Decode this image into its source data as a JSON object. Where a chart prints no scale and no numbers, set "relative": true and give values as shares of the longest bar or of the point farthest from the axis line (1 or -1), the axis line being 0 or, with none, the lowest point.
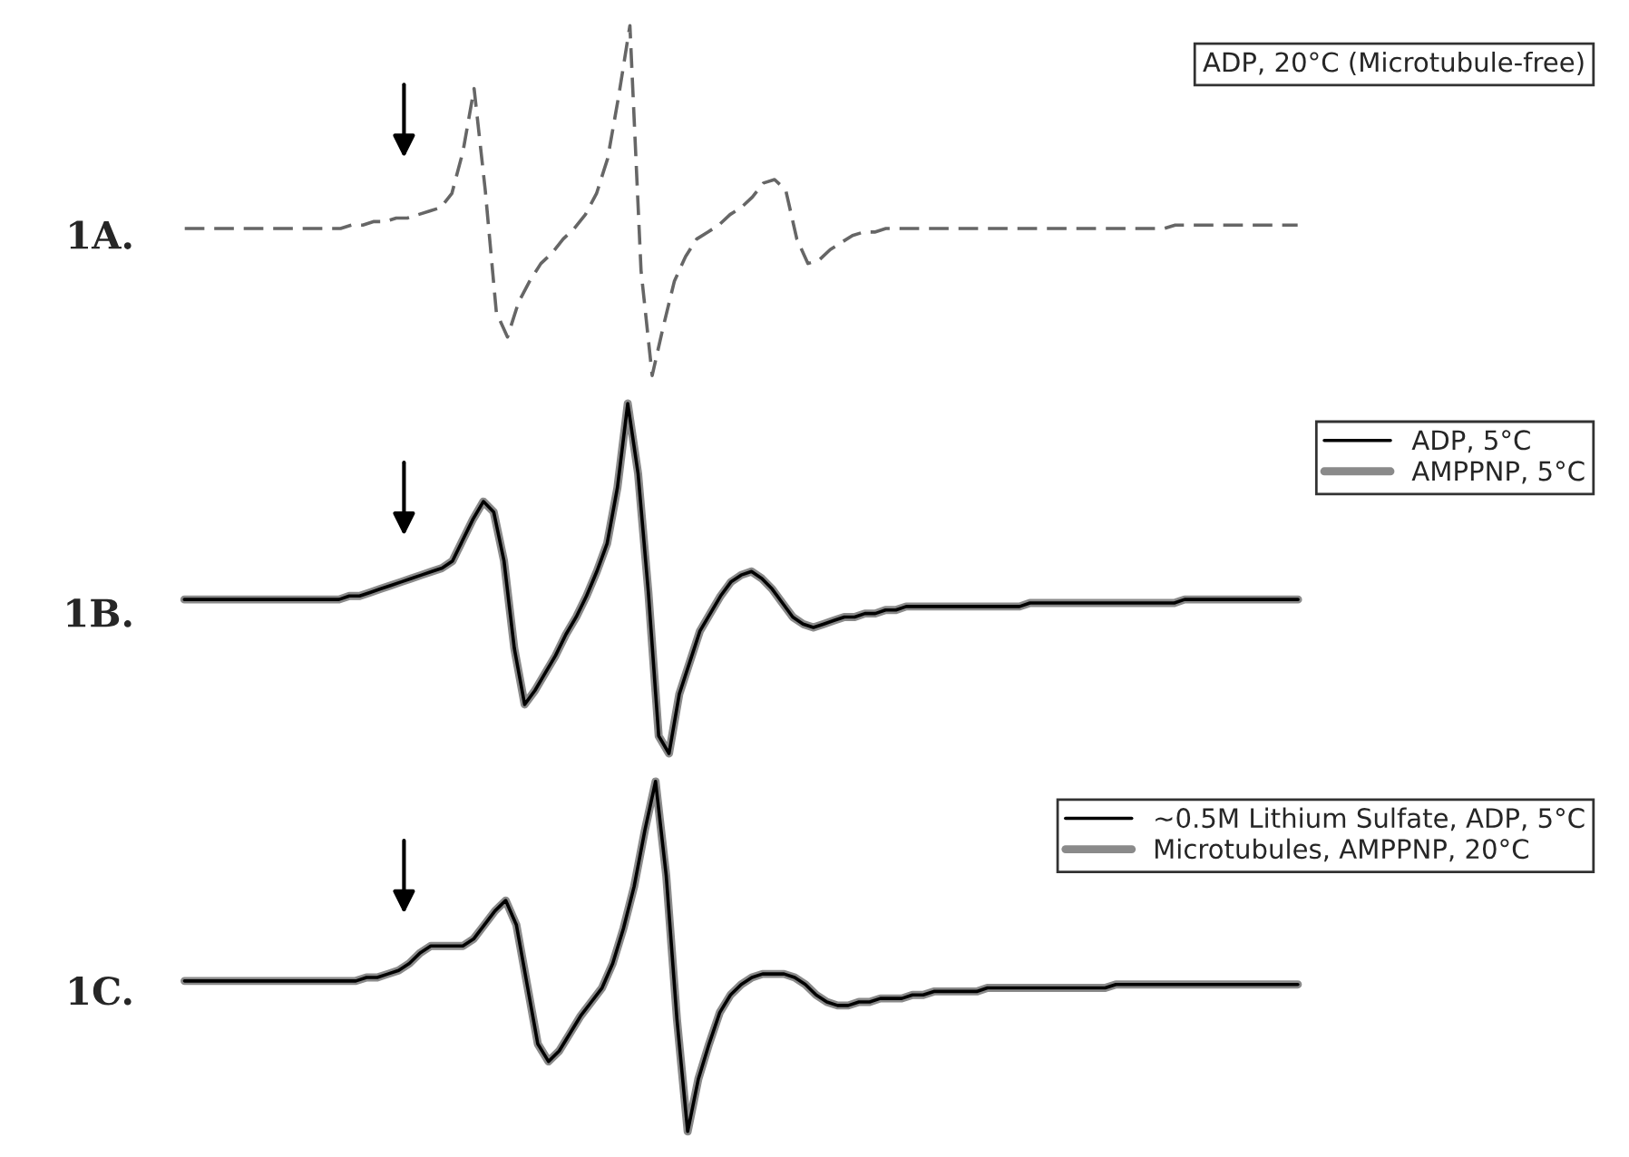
{
  "chart_data": [
    {
      "type": "line",
      "title": "1A.",
      "relative": true,
      "legend": "top right",
      "line_style": "dashed",
      "marker": "none",
      "categories": [
        null,
        null,
        null,
        null,
        null,
        null,
        null,
        null,
        null,
        null,
        null,
        null,
        null,
        null,
        null,
        null,
        null,
        null,
        null,
        null,
        null,
        null,
        null,
        null,
        null,
        null,
        null,
        null,
        null,
        null,
        null,
        null,
        null,
        null,
        null,
        null,
        null,
        null,
        null,
        null,
        null,
        null,
        null,
        null,
        null,
        null,
        null,
        null,
        null,
        null,
        null,
        null,
        null,
        null,
        null,
        null,
        null,
        null,
        null,
        null,
        null,
        null,
        null,
        null,
        null,
        null,
        null,
        null,
        null,
        null,
        null,
        null,
        null,
        null,
        null,
        null,
        null,
        null,
        null,
        null,
        null,
        null,
        null,
        null,
        null,
        null,
        null,
        null,
        null,
        null,
        null,
        null,
        null,
        null,
        null,
        null,
        null,
        null,
        null,
        null,
        null
      ],
      "series": [
        {
          "name": "ADP, 20°C (Microtubule-free)",
          "color": "#666666",
          "values": [
            0.42,
            0.42,
            0.42,
            0.42,
            0.42,
            0.42,
            0.42,
            0.42,
            0.42,
            0.42,
            0.42,
            0.42,
            0.42,
            0.42,
            0.42,
            0.43,
            0.43,
            0.44,
            0.44,
            0.45,
            0.45,
            0.46,
            0.47,
            0.48,
            0.52,
            0.64,
            0.82,
            0.53,
            0.18,
            0.11,
            0.21,
            0.27,
            0.32,
            0.35,
            0.39,
            0.42,
            0.46,
            0.52,
            0.62,
            0.8,
            1,
            0.3,
            0,
            0.14,
            0.27,
            0.34,
            0.39,
            0.41,
            0.43,
            0.46,
            0.48,
            0.51,
            0.55,
            0.56,
            0.53,
            0.39,
            0.32,
            0.33,
            0.36,
            0.38,
            0.4,
            0.41,
            0.41,
            0.42,
            0.42,
            0.42,
            0.42,
            0.42,
            0.42,
            0.42,
            0.42,
            0.42,
            0.42,
            0.42,
            0.42,
            0.42,
            0.42,
            0.42,
            0.42,
            0.42,
            0.42,
            0.42,
            0.42,
            0.42,
            0.42,
            0.42,
            0.42,
            0.42,
            0.42,
            0.43,
            0.43,
            0.43,
            0.43,
            0.43,
            0.43,
            0.43,
            0.43,
            0.43,
            0.43,
            0.43,
            0.43
          ]
        }
      ]
    },
    {
      "type": "line",
      "title": "1B.",
      "relative": true,
      "legend": "top right",
      "line_style": "solid",
      "marker": "none",
      "categories": [
        null,
        null,
        null,
        null,
        null,
        null,
        null,
        null,
        null,
        null,
        null,
        null,
        null,
        null,
        null,
        null,
        null,
        null,
        null,
        null,
        null,
        null,
        null,
        null,
        null,
        null,
        null,
        null,
        null,
        null,
        null,
        null,
        null,
        null,
        null,
        null,
        null,
        null,
        null,
        null,
        null,
        null,
        null,
        null,
        null,
        null,
        null,
        null,
        null,
        null,
        null,
        null,
        null,
        null,
        null,
        null,
        null,
        null,
        null,
        null,
        null,
        null,
        null,
        null,
        null,
        null,
        null,
        null,
        null,
        null,
        null,
        null,
        null,
        null,
        null,
        null,
        null,
        null,
        null,
        null,
        null,
        null,
        null,
        null,
        null,
        null,
        null,
        null,
        null,
        null,
        null,
        null,
        null,
        null,
        null,
        null,
        null,
        null,
        null,
        null,
        null,
        null,
        null,
        null,
        null,
        null,
        null,
        null,
        null
      ],
      "series": [
        {
          "name": "ADP, 5°C",
          "color": "#000000",
          "values": [
            0.44,
            0.44,
            0.44,
            0.44,
            0.44,
            0.44,
            0.44,
            0.44,
            0.44,
            0.44,
            0.44,
            0.44,
            0.44,
            0.44,
            0.44,
            0.44,
            0.45,
            0.45,
            0.46,
            0.47,
            0.48,
            0.49,
            0.5,
            0.51,
            0.52,
            0.53,
            0.55,
            0.61,
            0.67,
            0.72,
            0.69,
            0.55,
            0.3,
            0.14,
            0.18,
            0.23,
            0.28,
            0.34,
            0.39,
            0.45,
            0.52,
            0.6,
            0.76,
            1,
            0.8,
            0.46,
            0.05,
            0,
            0.17,
            0.26,
            0.35,
            0.4,
            0.45,
            0.49,
            0.51,
            0.52,
            0.5,
            0.47,
            0.43,
            0.39,
            0.37,
            0.36,
            0.37,
            0.38,
            0.39,
            0.39,
            0.4,
            0.4,
            0.41,
            0.41,
            0.42,
            0.42,
            0.42,
            0.42,
            0.42,
            0.42,
            0.42,
            0.42,
            0.42,
            0.42,
            0.42,
            0.42,
            0.43,
            0.43,
            0.43,
            0.43,
            0.43,
            0.43,
            0.43,
            0.43,
            0.43,
            0.43,
            0.43,
            0.43,
            0.43,
            0.43,
            0.43,
            0.44,
            0.44,
            0.44,
            0.44,
            0.44,
            0.44,
            0.44,
            0.44,
            0.44,
            0.44,
            0.44,
            0.44
          ]
        },
        {
          "name": "AMPPNP, 5°C",
          "color": "#8a8a8a",
          "values": [
            0.44,
            0.44,
            0.44,
            0.44,
            0.44,
            0.44,
            0.44,
            0.44,
            0.44,
            0.44,
            0.44,
            0.44,
            0.44,
            0.44,
            0.44,
            0.44,
            0.45,
            0.45,
            0.46,
            0.47,
            0.48,
            0.49,
            0.5,
            0.51,
            0.52,
            0.53,
            0.55,
            0.61,
            0.67,
            0.72,
            0.69,
            0.55,
            0.3,
            0.14,
            0.18,
            0.23,
            0.28,
            0.34,
            0.39,
            0.45,
            0.52,
            0.6,
            0.76,
            1,
            0.8,
            0.46,
            0.05,
            0,
            0.17,
            0.26,
            0.35,
            0.4,
            0.45,
            0.49,
            0.51,
            0.52,
            0.5,
            0.47,
            0.43,
            0.39,
            0.37,
            0.36,
            0.37,
            0.38,
            0.39,
            0.39,
            0.4,
            0.4,
            0.41,
            0.41,
            0.42,
            0.42,
            0.42,
            0.42,
            0.42,
            0.42,
            0.42,
            0.42,
            0.42,
            0.42,
            0.42,
            0.42,
            0.43,
            0.43,
            0.43,
            0.43,
            0.43,
            0.43,
            0.43,
            0.43,
            0.43,
            0.43,
            0.43,
            0.43,
            0.43,
            0.43,
            0.43,
            0.44,
            0.44,
            0.44,
            0.44,
            0.44,
            0.44,
            0.44,
            0.44,
            0.44,
            0.44,
            0.44,
            0.44
          ]
        }
      ]
    },
    {
      "type": "line",
      "title": "1C.",
      "relative": true,
      "legend": "top right",
      "line_style": "solid",
      "marker": "none",
      "categories": [
        null,
        null,
        null,
        null,
        null,
        null,
        null,
        null,
        null,
        null,
        null,
        null,
        null,
        null,
        null,
        null,
        null,
        null,
        null,
        null,
        null,
        null,
        null,
        null,
        null,
        null,
        null,
        null,
        null,
        null,
        null,
        null,
        null,
        null,
        null,
        null,
        null,
        null,
        null,
        null,
        null,
        null,
        null,
        null,
        null,
        null,
        null,
        null,
        null,
        null,
        null,
        null,
        null,
        null,
        null,
        null,
        null,
        null,
        null,
        null,
        null,
        null,
        null,
        null,
        null,
        null,
        null,
        null,
        null,
        null,
        null,
        null,
        null,
        null,
        null,
        null,
        null,
        null,
        null,
        null,
        null,
        null,
        null,
        null,
        null,
        null,
        null,
        null,
        null,
        null,
        null,
        null,
        null,
        null,
        null,
        null,
        null,
        null,
        null,
        null,
        null,
        null,
        null,
        null,
        null
      ],
      "series": [
        {
          "name": "~0.5M Lithium Sulfate, ADP, 5°C",
          "color": "#000000",
          "values": [
            0.43,
            0.43,
            0.43,
            0.43,
            0.43,
            0.43,
            0.43,
            0.43,
            0.43,
            0.43,
            0.43,
            0.43,
            0.43,
            0.43,
            0.43,
            0.43,
            0.43,
            0.44,
            0.44,
            0.45,
            0.46,
            0.48,
            0.51,
            0.53,
            0.53,
            0.53,
            0.53,
            0.55,
            0.59,
            0.63,
            0.66,
            0.59,
            0.42,
            0.25,
            0.2,
            0.23,
            0.28,
            0.33,
            0.37,
            0.41,
            0.48,
            0.58,
            0.7,
            0.86,
            1,
            0.73,
            0.32,
            0,
            0.15,
            0.25,
            0.34,
            0.39,
            0.42,
            0.44,
            0.45,
            0.45,
            0.45,
            0.44,
            0.42,
            0.39,
            0.37,
            0.36,
            0.36,
            0.37,
            0.37,
            0.38,
            0.38,
            0.38,
            0.39,
            0.39,
            0.4,
            0.4,
            0.4,
            0.4,
            0.4,
            0.41,
            0.41,
            0.41,
            0.41,
            0.41,
            0.41,
            0.41,
            0.41,
            0.41,
            0.41,
            0.41,
            0.41,
            0.42,
            0.42,
            0.42,
            0.42,
            0.42,
            0.42,
            0.42,
            0.42,
            0.42,
            0.42,
            0.42,
            0.42,
            0.42,
            0.42,
            0.42,
            0.42,
            0.42,
            0.42
          ]
        },
        {
          "name": "Microtubules, AMPPNP, 20°C",
          "color": "#8a8a8a",
          "values": [
            0.43,
            0.43,
            0.43,
            0.43,
            0.43,
            0.43,
            0.43,
            0.43,
            0.43,
            0.43,
            0.43,
            0.43,
            0.43,
            0.43,
            0.43,
            0.43,
            0.43,
            0.44,
            0.44,
            0.45,
            0.46,
            0.48,
            0.51,
            0.53,
            0.53,
            0.53,
            0.53,
            0.55,
            0.59,
            0.63,
            0.66,
            0.59,
            0.42,
            0.25,
            0.2,
            0.23,
            0.28,
            0.33,
            0.37,
            0.41,
            0.48,
            0.58,
            0.7,
            0.86,
            1,
            0.73,
            0.32,
            0,
            0.15,
            0.25,
            0.34,
            0.39,
            0.42,
            0.44,
            0.45,
            0.45,
            0.45,
            0.44,
            0.42,
            0.39,
            0.37,
            0.36,
            0.36,
            0.37,
            0.37,
            0.38,
            0.38,
            0.38,
            0.39,
            0.39,
            0.4,
            0.4,
            0.4,
            0.4,
            0.4,
            0.41,
            0.41,
            0.41,
            0.41,
            0.41,
            0.41,
            0.41,
            0.41,
            0.41,
            0.41,
            0.41,
            0.41,
            0.42,
            0.42,
            0.42,
            0.42,
            0.42,
            0.42,
            0.42,
            0.42,
            0.42,
            0.42,
            0.42,
            0.42,
            0.42,
            0.42,
            0.42,
            0.42,
            0.42,
            0.42
          ]
        }
      ]
    }
  ]
}
